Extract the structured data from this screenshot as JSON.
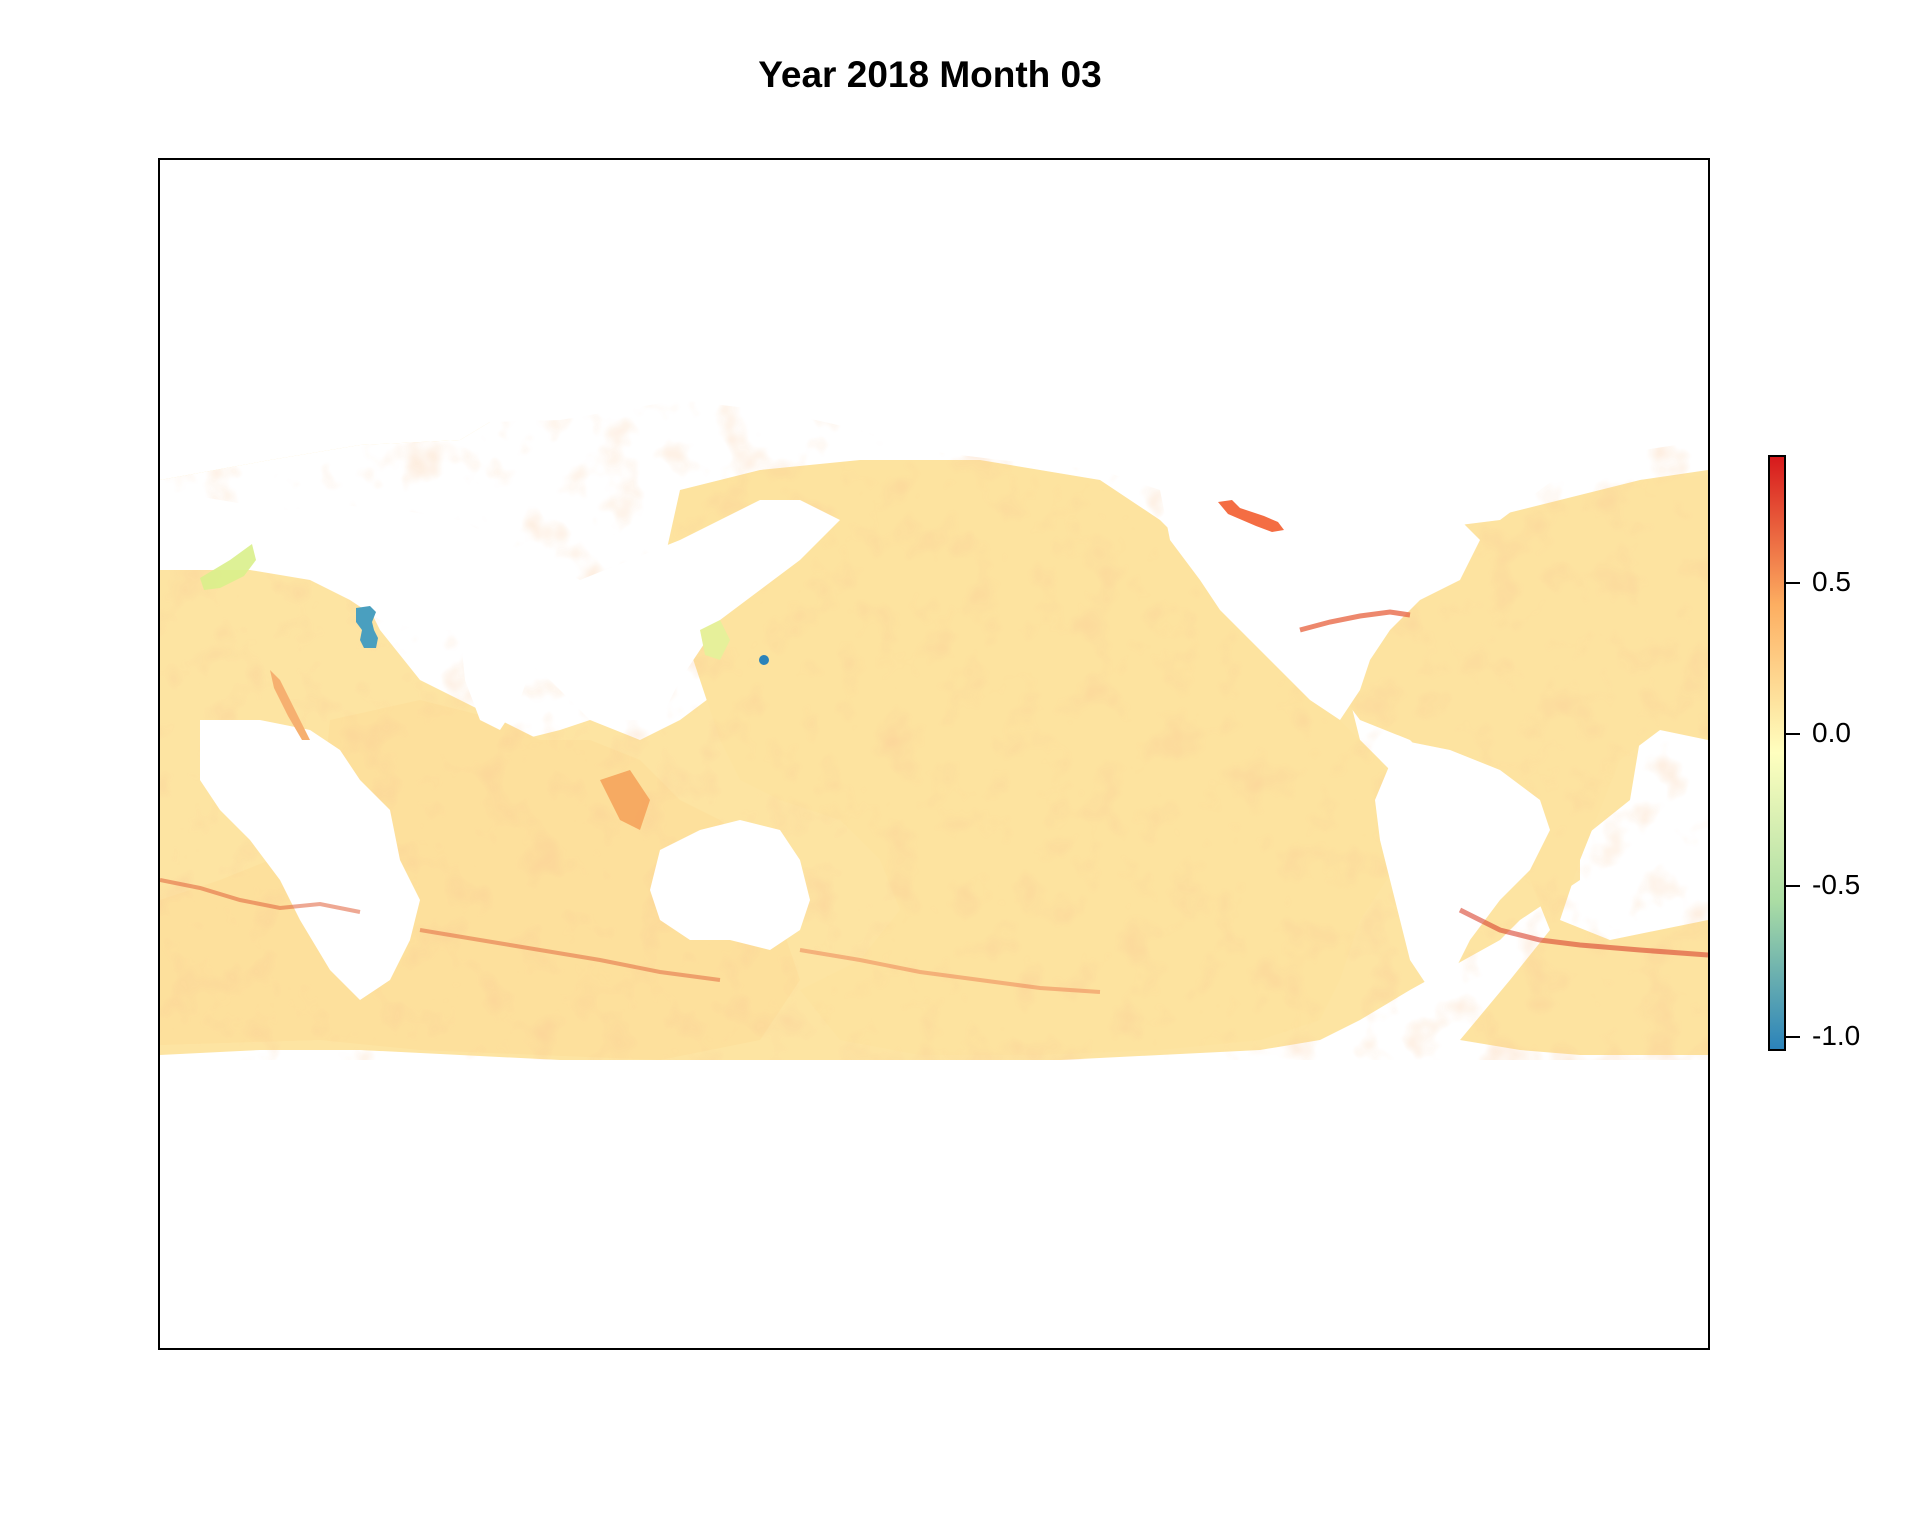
{
  "title": "Year 2018 Month 03",
  "legend": {
    "range": [
      -1.05,
      0.92
    ],
    "ticks": [
      {
        "value": 0.5,
        "label": "0.5"
      },
      {
        "value": 0.0,
        "label": "0.0"
      },
      {
        "value": -0.5,
        "label": "-0.5"
      },
      {
        "value": -1.0,
        "label": "-1.0"
      }
    ],
    "colors": [
      "#2b83ba",
      "#abdda4",
      "#ffffbf",
      "#fdae61",
      "#d7191c"
    ]
  },
  "map_colors": {
    "ocean_base": "#fde3a0",
    "warm_anomaly": "#f46d43",
    "strong_warm": "#d73027",
    "cool_anomaly": "#d9ef8b",
    "strong_cool": "#4a9fbf",
    "land": "#ffffff"
  }
}
